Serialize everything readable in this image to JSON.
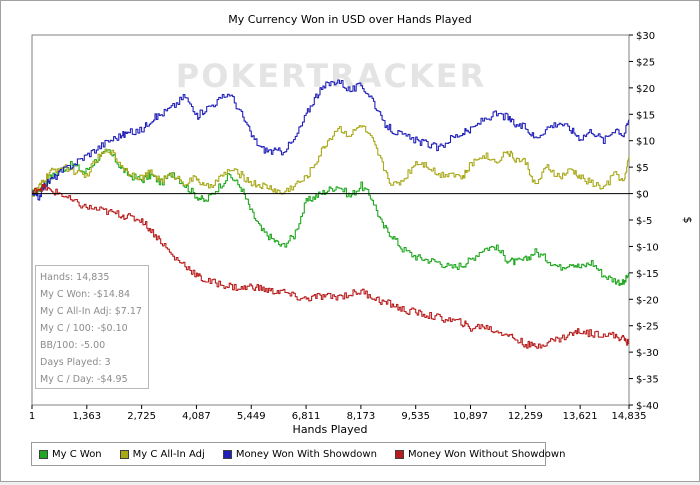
{
  "chart_data": {
    "type": "line",
    "title": "My Currency Won in USD over Hands Played",
    "xlabel": "Hands Played",
    "ylabel": "$",
    "watermark": "POKERTRACKER",
    "xlim": [
      1,
      14835
    ],
    "ylim": [
      -40,
      30
    ],
    "x_ticks": [
      "1",
      "1,363",
      "2,725",
      "4,087",
      "5,449",
      "6,811",
      "8,173",
      "9,535",
      "10,897",
      "12,259",
      "13,621",
      "14,835"
    ],
    "y_ticks": [
      "$30",
      "$25",
      "$20",
      "$15",
      "$10",
      "$5",
      "$0",
      "$-5",
      "$-10",
      "$-15",
      "$-20",
      "$-25",
      "$-30",
      "$-35",
      "$-40"
    ],
    "legend_position": "bottom",
    "series": [
      {
        "name": "My C Won",
        "color": "#1fa81f",
        "x": [
          1,
          150,
          300,
          450,
          700,
          1000,
          1300,
          1600,
          1900,
          2200,
          2400,
          2725,
          2950,
          3200,
          3500,
          3800,
          4087,
          4300,
          4600,
          4900,
          5200,
          5449,
          5700,
          5950,
          6200,
          6500,
          6811,
          7050,
          7300,
          7600,
          7900,
          8173,
          8450,
          8700,
          8950,
          9200,
          9535,
          9800,
          10100,
          10400,
          10700,
          10897,
          11200,
          11500,
          11800,
          12000,
          12259,
          12500,
          12800,
          13100,
          13400,
          13621,
          13900,
          14200,
          14500,
          14700,
          14835
        ],
        "y": [
          0,
          0.5,
          1.5,
          3.0,
          4.5,
          5.5,
          4.0,
          6.5,
          8.0,
          5.0,
          3.5,
          2.5,
          3.5,
          2.0,
          4.0,
          1.5,
          -0.5,
          -1.5,
          1.0,
          3.5,
          1.0,
          -3.5,
          -7.0,
          -8.5,
          -10.0,
          -8.0,
          -1.5,
          -0.5,
          0.5,
          1.5,
          -0.5,
          1.5,
          -1.0,
          -6.0,
          -8.0,
          -10.5,
          -12.0,
          -12.5,
          -13.0,
          -14.0,
          -13.5,
          -12.5,
          -10.5,
          -10.0,
          -12.5,
          -13.0,
          -12.5,
          -11.0,
          -12.5,
          -14.0,
          -13.0,
          -14.0,
          -13.0,
          -15.5,
          -16.5,
          -17.0,
          -15.0
        ]
      },
      {
        "name": "My C All-In Adj",
        "color": "#a8a818",
        "x": [
          1,
          150,
          300,
          450,
          700,
          1000,
          1300,
          1600,
          1900,
          2200,
          2400,
          2725,
          2950,
          3200,
          3500,
          3800,
          4087,
          4300,
          4600,
          4900,
          5200,
          5449,
          5700,
          5950,
          6200,
          6500,
          6811,
          7050,
          7300,
          7600,
          7900,
          8173,
          8450,
          8700,
          8950,
          9200,
          9535,
          9800,
          10100,
          10400,
          10700,
          10897,
          11200,
          11500,
          11800,
          12000,
          12259,
          12500,
          12800,
          13100,
          13400,
          13621,
          13900,
          14200,
          14500,
          14700,
          14835
        ],
        "y": [
          0,
          1.0,
          2.5,
          4.0,
          5.0,
          4.5,
          3.0,
          6.5,
          8.5,
          5.5,
          4.0,
          3.0,
          4.0,
          2.5,
          3.5,
          2.0,
          3.0,
          1.0,
          2.5,
          4.5,
          3.5,
          2.0,
          1.5,
          1.0,
          0,
          1.5,
          3.0,
          6.0,
          9.5,
          12.5,
          11.0,
          13.0,
          10.0,
          5.5,
          1.5,
          2.5,
          6.0,
          5.5,
          3.5,
          4.0,
          3.0,
          5.5,
          7.5,
          6.0,
          8.0,
          6.5,
          6.0,
          1.5,
          5.0,
          3.0,
          4.5,
          3.0,
          2.0,
          1.0,
          4.0,
          2.0,
          7.0
        ]
      },
      {
        "name": "Money Won With Showdown",
        "color": "#2020b8",
        "x": [
          1,
          150,
          300,
          450,
          700,
          1000,
          1300,
          1600,
          1900,
          2200,
          2400,
          2725,
          2950,
          3200,
          3500,
          3800,
          4087,
          4300,
          4600,
          4900,
          5200,
          5449,
          5700,
          5950,
          6200,
          6500,
          6811,
          7050,
          7300,
          7600,
          7900,
          8173,
          8450,
          8700,
          8950,
          9200,
          9535,
          9800,
          10100,
          10400,
          10700,
          10897,
          11200,
          11500,
          11800,
          12000,
          12259,
          12500,
          12800,
          13100,
          13400,
          13621,
          13900,
          14200,
          14500,
          14700,
          14835
        ],
        "y": [
          0,
          -1.0,
          1.5,
          2.5,
          4.0,
          5.5,
          7.0,
          8.5,
          10.0,
          11.0,
          11.5,
          12.0,
          14.0,
          15.0,
          16.5,
          18.5,
          14.5,
          16.0,
          17.5,
          19.0,
          15.0,
          11.0,
          8.5,
          8.0,
          8.0,
          10.0,
          15.0,
          18.5,
          20.5,
          21.5,
          19.5,
          20.5,
          18.0,
          13.5,
          12.0,
          11.0,
          10.0,
          9.5,
          8.5,
          10.5,
          11.5,
          12.0,
          14.0,
          15.0,
          14.5,
          13.0,
          12.5,
          10.5,
          12.5,
          13.5,
          12.0,
          10.5,
          12.0,
          10.0,
          12.5,
          11.0,
          14.0
        ]
      },
      {
        "name": "Money Won Without Showdown",
        "color": "#b81c1c",
        "x": [
          1,
          150,
          300,
          450,
          700,
          1000,
          1300,
          1600,
          1900,
          2200,
          2400,
          2725,
          2950,
          3200,
          3500,
          3800,
          4087,
          4300,
          4600,
          4900,
          5200,
          5449,
          5700,
          5950,
          6200,
          6500,
          6811,
          7050,
          7300,
          7600,
          7900,
          8173,
          8450,
          8700,
          8950,
          9200,
          9535,
          9800,
          10100,
          10400,
          10700,
          10897,
          11200,
          11500,
          11800,
          12000,
          12259,
          12500,
          12800,
          13100,
          13400,
          13621,
          13900,
          14200,
          14500,
          14700,
          14835
        ],
        "y": [
          0,
          1.0,
          1.2,
          0.5,
          0,
          -1.5,
          -2.5,
          -3.0,
          -3.5,
          -4.0,
          -4.5,
          -5.0,
          -7.0,
          -9.0,
          -12.0,
          -13.5,
          -15.5,
          -16.5,
          -17.0,
          -17.5,
          -18.0,
          -17.5,
          -18.0,
          -18.5,
          -18.5,
          -19.5,
          -20.0,
          -19.5,
          -19.5,
          -19.5,
          -19.0,
          -18.5,
          -19.5,
          -20.5,
          -21.0,
          -22.0,
          -22.5,
          -23.0,
          -23.5,
          -24.0,
          -24.5,
          -25.5,
          -25.0,
          -26.0,
          -26.5,
          -27.5,
          -28.5,
          -29.0,
          -28.0,
          -27.5,
          -26.5,
          -26.0,
          -26.5,
          -26.5,
          -27.0,
          -27.5,
          -28.5
        ]
      }
    ]
  },
  "stats": {
    "hands": "Hands: 14,835",
    "won": "My C Won: -$14.84",
    "allin_adj": "My C All-In Adj: $7.17",
    "per100": "My C / 100: -$0.10",
    "bb100": "BB/100: -5.00",
    "days": "Days Played: 3",
    "per_day": "My C / Day: -$4.95"
  }
}
